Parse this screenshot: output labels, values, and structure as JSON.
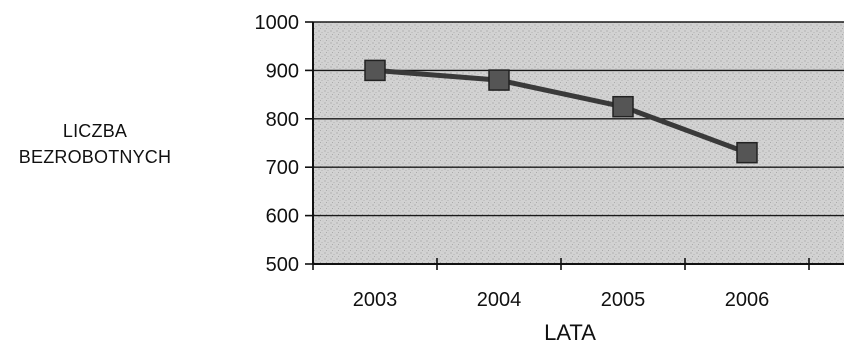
{
  "chart_data": {
    "type": "line",
    "title": "",
    "xlabel": "LATA",
    "ylabel_lines": [
      "LICZBA",
      "BEZROBOTNYCH"
    ],
    "categories": [
      "2003",
      "2004",
      "2005",
      "2006"
    ],
    "series": [
      {
        "values": [
          900,
          880,
          825,
          730
        ]
      }
    ],
    "ylim": [
      500,
      1000
    ],
    "yticks": [
      500,
      600,
      700,
      800,
      900,
      1000
    ],
    "grid": true,
    "legend": "none",
    "colors": {
      "line": "#3a3a3a",
      "marker": "#555555",
      "plot_background": "#cfcfcf",
      "gridline": "#1a1a1a"
    }
  }
}
